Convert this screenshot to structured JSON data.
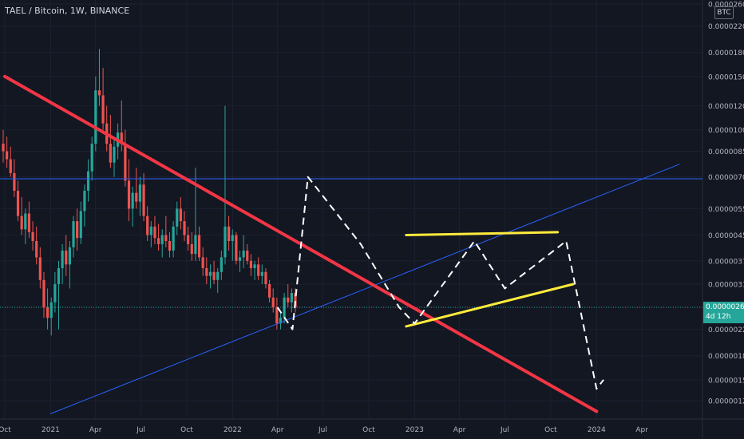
{
  "header": {
    "symbol_line": "TAEL / Bitcoin, 1W, BINANCE"
  },
  "currency_button": "BTC",
  "price_tag": {
    "price": "0.00000260",
    "countdown": "4d 12h",
    "color": "#26a69a"
  },
  "colors": {
    "background": "#131722",
    "up_candle": "#26a69a",
    "down_candle": "#ef5350",
    "blue_line": "#2962ff",
    "red_line": "#f23645",
    "yellow_line": "#ffeb3b",
    "forecast_path": "#ffffff",
    "axis_text": "#b2b5be"
  },
  "chart_data": {
    "type": "candlestick",
    "symbol": "TAEL / Bitcoin",
    "interval": "1W",
    "exchange": "BINANCE",
    "y_scale": "log",
    "ylim": [
      1.15e-06,
      2.6e-06
    ],
    "xlim": [
      "2020-10-01",
      "2024-06-15"
    ],
    "y_ticks": [
      "0.00002600",
      "0.00002200",
      "0.00001800",
      "0.00001500",
      "0.00001200",
      "0.00001000",
      "0.00000850",
      "0.00000700",
      "0.00000550",
      "0.00000450",
      "0.00000370",
      "0.00000310",
      "0.00000260",
      "0.00000220",
      "0.00000180",
      "0.00000150",
      "0.00000128"
    ],
    "y_tick_values": [
      2.6e-05,
      2.2e-05,
      1.8e-05,
      1.5e-05,
      1.2e-05,
      1e-05,
      8.5e-06,
      7e-06,
      5.5e-06,
      4.5e-06,
      3.7e-06,
      3.1e-06,
      2.6e-06,
      2.2e-06,
      1.8e-06,
      1.5e-06,
      1.28e-06
    ],
    "x_ticks": [
      "Oct",
      "2021",
      "Apr",
      "Jul",
      "Oct",
      "2022",
      "Apr",
      "Jul",
      "Oct",
      "2023",
      "Apr",
      "Jul",
      "Oct",
      "2024",
      "Apr"
    ],
    "x_tick_dates": [
      "2020-10-01",
      "2021-01-01",
      "2021-04-01",
      "2021-07-01",
      "2021-10-01",
      "2022-01-01",
      "2022-04-01",
      "2022-07-01",
      "2022-10-01",
      "2023-01-01",
      "2023-04-01",
      "2023-07-01",
      "2023-10-01",
      "2024-01-01",
      "2024-04-01"
    ],
    "last_price": 2.6e-06,
    "candles": [
      {
        "o": 9e-06,
        "h": 1e-05,
        "l": 7.8e-06,
        "c": 8.5e-06
      },
      {
        "o": 8.5e-06,
        "h": 9.5e-06,
        "l": 7.5e-06,
        "c": 8e-06
      },
      {
        "o": 8e-06,
        "h": 8.8e-06,
        "l": 7e-06,
        "c": 7.2e-06
      },
      {
        "o": 7.2e-06,
        "h": 8e-06,
        "l": 6e-06,
        "c": 6.3e-06
      },
      {
        "o": 6.3e-06,
        "h": 6.8e-06,
        "l": 5e-06,
        "c": 5.2e-06
      },
      {
        "o": 5.2e-06,
        "h": 6e-06,
        "l": 4.5e-06,
        "c": 4.7e-06
      },
      {
        "o": 4.7e-06,
        "h": 5.5e-06,
        "l": 4.2e-06,
        "c": 5.3e-06
      },
      {
        "o": 5.3e-06,
        "h": 5.8e-06,
        "l": 4.4e-06,
        "c": 4.6e-06
      },
      {
        "o": 4.6e-06,
        "h": 5e-06,
        "l": 4e-06,
        "c": 4.3e-06
      },
      {
        "o": 4.3e-06,
        "h": 4.8e-06,
        "l": 3.6e-06,
        "c": 3.8e-06
      },
      {
        "o": 3.8e-06,
        "h": 4.1e-06,
        "l": 3e-06,
        "c": 3.2e-06
      },
      {
        "o": 3.2e-06,
        "h": 3.4e-06,
        "l": 2.4e-06,
        "c": 2.6e-06
      },
      {
        "o": 2.6e-06,
        "h": 3e-06,
        "l": 2.2e-06,
        "c": 2.4e-06
      },
      {
        "o": 2.4e-06,
        "h": 2.8e-06,
        "l": 2.1e-06,
        "c": 2.7e-06
      },
      {
        "o": 2.7e-06,
        "h": 3.4e-06,
        "l": 2.5e-06,
        "c": 3.1e-06
      },
      {
        "o": 3.1e-06,
        "h": 3.7e-06,
        "l": 2.2e-06,
        "c": 3.5e-06
      },
      {
        "o": 3.5e-06,
        "h": 4.2e-06,
        "l": 3.1e-06,
        "c": 4e-06
      },
      {
        "o": 4e-06,
        "h": 4.5e-06,
        "l": 3.3e-06,
        "c": 3.6e-06
      },
      {
        "o": 3.6e-06,
        "h": 4.3e-06,
        "l": 3e-06,
        "c": 4.1e-06
      },
      {
        "o": 4.1e-06,
        "h": 5.2e-06,
        "l": 3.8e-06,
        "c": 5e-06
      },
      {
        "o": 5e-06,
        "h": 5.5e-06,
        "l": 4e-06,
        "c": 4.4e-06
      },
      {
        "o": 4.4e-06,
        "h": 5.8e-06,
        "l": 4.2e-06,
        "c": 5.4e-06
      },
      {
        "o": 5.4e-06,
        "h": 6.6e-06,
        "l": 4.8e-06,
        "c": 6.3e-06
      },
      {
        "o": 6.3e-06,
        "h": 8e-06,
        "l": 5.8e-06,
        "c": 7.3e-06
      },
      {
        "o": 7.3e-06,
        "h": 9.5e-06,
        "l": 6.8e-06,
        "c": 9e-06
      },
      {
        "o": 9e-06,
        "h": 1.5e-05,
        "l": 8.5e-06,
        "c": 1.35e-05
      },
      {
        "o": 1.35e-05,
        "h": 1.85e-05,
        "l": 1.2e-05,
        "c": 1.3e-05
      },
      {
        "o": 1.3e-05,
        "h": 1.6e-05,
        "l": 1e-05,
        "c": 1.05e-05
      },
      {
        "o": 1.05e-05,
        "h": 1.2e-05,
        "l": 8.5e-06,
        "c": 9e-06
      },
      {
        "o": 9e-06,
        "h": 1.12e-05,
        "l": 7.5e-06,
        "c": 7.8e-06
      },
      {
        "o": 7.8e-06,
        "h": 9.5e-06,
        "l": 7e-06,
        "c": 8.8e-06
      },
      {
        "o": 8.8e-06,
        "h": 1.05e-05,
        "l": 8e-06,
        "c": 9.8e-06
      },
      {
        "o": 9.8e-06,
        "h": 1.25e-05,
        "l": 8.5e-06,
        "c": 9e-06
      },
      {
        "o": 9e-06,
        "h": 1e-05,
        "l": 6.5e-06,
        "c": 6.8e-06
      },
      {
        "o": 6.8e-06,
        "h": 8e-06,
        "l": 5e-06,
        "c": 5.5e-06
      },
      {
        "o": 5.5e-06,
        "h": 6.5e-06,
        "l": 4.8e-06,
        "c": 6.2e-06
      },
      {
        "o": 6.2e-06,
        "h": 7.5e-06,
        "l": 5.5e-06,
        "c": 5.8e-06
      },
      {
        "o": 5.8e-06,
        "h": 7e-06,
        "l": 5.2e-06,
        "c": 6.6e-06
      },
      {
        "o": 6.6e-06,
        "h": 7.2e-06,
        "l": 5e-06,
        "c": 5.2e-06
      },
      {
        "o": 5.2e-06,
        "h": 5.6e-06,
        "l": 4.3e-06,
        "c": 4.5e-06
      },
      {
        "o": 4.5e-06,
        "h": 5e-06,
        "l": 4.1e-06,
        "c": 4.8e-06
      },
      {
        "o": 4.8e-06,
        "h": 5.2e-06,
        "l": 4.2e-06,
        "c": 4.4e-06
      },
      {
        "o": 4.4e-06,
        "h": 4.9e-06,
        "l": 4e-06,
        "c": 4.2e-06
      },
      {
        "o": 4.2e-06,
        "h": 4.7e-06,
        "l": 3.8e-06,
        "c": 4.5e-06
      },
      {
        "o": 4.5e-06,
        "h": 5.2e-06,
        "l": 4.1e-06,
        "c": 4.3e-06
      },
      {
        "o": 4.3e-06,
        "h": 4.6e-06,
        "l": 3.8e-06,
        "c": 4e-06
      },
      {
        "o": 4e-06,
        "h": 5e-06,
        "l": 3.8e-06,
        "c": 4.8e-06
      },
      {
        "o": 4.8e-06,
        "h": 5.8e-06,
        "l": 4.5e-06,
        "c": 5.5e-06
      },
      {
        "o": 5.5e-06,
        "h": 6e-06,
        "l": 4.7e-06,
        "c": 5e-06
      },
      {
        "o": 5e-06,
        "h": 5.4e-06,
        "l": 4.3e-06,
        "c": 4.5e-06
      },
      {
        "o": 4.5e-06,
        "h": 4.8e-06,
        "l": 4e-06,
        "c": 4.2e-06
      },
      {
        "o": 4.2e-06,
        "h": 4.6e-06,
        "l": 3.7e-06,
        "c": 3.9e-06
      },
      {
        "o": 3.9e-06,
        "h": 7.5e-06,
        "l": 3.7e-06,
        "c": 4.5e-06
      },
      {
        "o": 4.5e-06,
        "h": 4.8e-06,
        "l": 3.7e-06,
        "c": 3.8e-06
      },
      {
        "o": 3.8e-06,
        "h": 4.1e-06,
        "l": 3.3e-06,
        "c": 3.5e-06
      },
      {
        "o": 3.5e-06,
        "h": 3.8e-06,
        "l": 3.1e-06,
        "c": 3.3e-06
      },
      {
        "o": 3.3e-06,
        "h": 3.6e-06,
        "l": 3e-06,
        "c": 3.4e-06
      },
      {
        "o": 3.4e-06,
        "h": 3.7e-06,
        "l": 3.1e-06,
        "c": 3.2e-06
      },
      {
        "o": 3.2e-06,
        "h": 3.5e-06,
        "l": 2.9e-06,
        "c": 3.4e-06
      },
      {
        "o": 3.4e-06,
        "h": 4e-06,
        "l": 3.2e-06,
        "c": 3.8e-06
      },
      {
        "o": 3.8e-06,
        "h": 1.2e-05,
        "l": 3.6e-06,
        "c": 4.8e-06
      },
      {
        "o": 4.8e-06,
        "h": 5.2e-06,
        "l": 4e-06,
        "c": 4.3e-06
      },
      {
        "o": 4.3e-06,
        "h": 4.7e-06,
        "l": 3.7e-06,
        "c": 4.5e-06
      },
      {
        "o": 4.5e-06,
        "h": 4.6e-06,
        "l": 3.6e-06,
        "c": 3.7e-06
      },
      {
        "o": 3.7e-06,
        "h": 4e-06,
        "l": 3.4e-06,
        "c": 3.8e-06
      },
      {
        "o": 3.8e-06,
        "h": 4.5e-06,
        "l": 3.5e-06,
        "c": 4e-06
      },
      {
        "o": 4e-06,
        "h": 4.2e-06,
        "l": 3.6e-06,
        "c": 3.7e-06
      },
      {
        "o": 3.7e-06,
        "h": 3.9e-06,
        "l": 3.3e-06,
        "c": 3.5e-06
      },
      {
        "o": 3.5e-06,
        "h": 3.7e-06,
        "l": 3.2e-06,
        "c": 3.6e-06
      },
      {
        "o": 3.6e-06,
        "h": 3.8e-06,
        "l": 3.2e-06,
        "c": 3.3e-06
      },
      {
        "o": 3.3e-06,
        "h": 3.6e-06,
        "l": 3.1e-06,
        "c": 3.4e-06
      },
      {
        "o": 3.4e-06,
        "h": 3.5e-06,
        "l": 3e-06,
        "c": 3.1e-06
      },
      {
        "o": 3.1e-06,
        "h": 3.2e-06,
        "l": 2.7e-06,
        "c": 2.8e-06
      },
      {
        "o": 2.8e-06,
        "h": 3e-06,
        "l": 2.5e-06,
        "c": 2.6e-06
      },
      {
        "o": 2.6e-06,
        "h": 2.8e-06,
        "l": 2.2e-06,
        "c": 2.3e-06
      },
      {
        "o": 2.3e-06,
        "h": 2.5e-06,
        "l": 2.2e-06,
        "c": 2.4e-06
      },
      {
        "o": 2.4e-06,
        "h": 2.9e-06,
        "l": 2.3e-06,
        "c": 2.8e-06
      },
      {
        "o": 2.8e-06,
        "h": 3.1e-06,
        "l": 2.6e-06,
        "c": 2.7e-06
      },
      {
        "o": 2.7e-06,
        "h": 3e-06,
        "l": 2.5e-06,
        "c": 2.9e-06
      },
      {
        "o": 2.9e-06,
        "h": 3e-06,
        "l": 2.5e-06,
        "c": 2.6e-06
      }
    ],
    "annotations": {
      "horizontal_line": {
        "y": 6.9e-06,
        "color": "#2962ff"
      },
      "rising_trendline": {
        "from": [
          "2021-01-01",
          1.16e-06
        ],
        "to": [
          "2024-06-15",
          7.7e-06
        ],
        "color": "#2962ff"
      },
      "falling_trendline": {
        "from": [
          "2020-10-01",
          1.5e-05
        ],
        "to": [
          "2024-01-01",
          1.18e-06
        ],
        "color": "#f23645"
      },
      "yellow_upper": {
        "from": [
          "2022-12-15",
          4.5e-06
        ],
        "to": [
          "2023-10-15",
          4.6e-06
        ],
        "color": "#ffeb3b"
      },
      "yellow_lower": {
        "from": [
          "2022-12-15",
          2.25e-06
        ],
        "to": [
          "2023-11-15",
          3.1e-06
        ],
        "color": "#ffeb3b"
      },
      "forecast_path": [
        [
          "2022-04-01",
          2.6e-06
        ],
        [
          "2022-05-01",
          2.2e-06
        ],
        [
          "2022-06-01",
          7e-06
        ],
        [
          "2022-09-15",
          4.2e-06
        ],
        [
          "2022-12-01",
          2.6e-06
        ],
        [
          "2023-01-01",
          2.3e-06
        ],
        [
          "2023-05-01",
          4.3e-06
        ],
        [
          "2023-07-01",
          3e-06
        ],
        [
          "2023-11-01",
          4.3e-06
        ],
        [
          "2024-01-01",
          1.4e-06
        ],
        [
          "2024-01-15",
          1.5e-06
        ]
      ]
    }
  }
}
